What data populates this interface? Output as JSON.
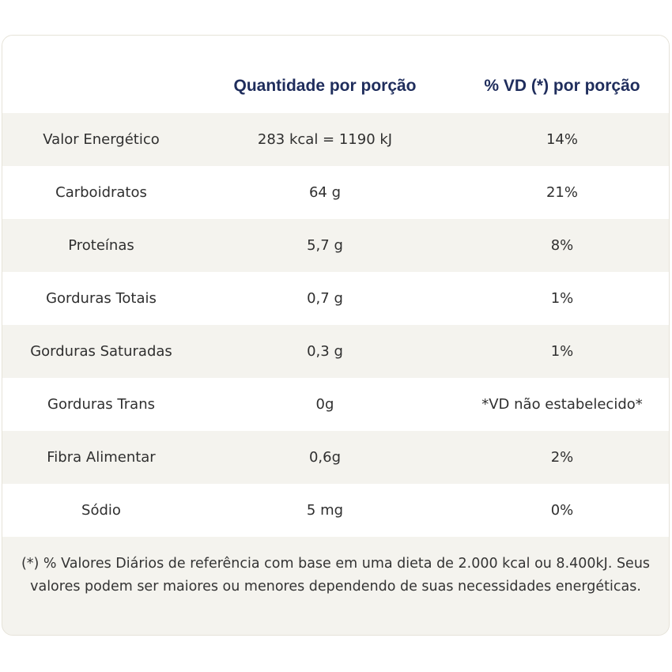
{
  "table": {
    "headers": {
      "nutrient": "",
      "quantity": "Quantidade por porção",
      "daily_value": "% VD (*) por porção"
    },
    "rows": [
      {
        "nutrient": "Valor Energético",
        "quantity": "283 kcal = 1190 kJ",
        "daily_value": "14%"
      },
      {
        "nutrient": "Carboidratos",
        "quantity": "64 g",
        "daily_value": "21%"
      },
      {
        "nutrient": "Proteínas",
        "quantity": "5,7 g",
        "daily_value": "8%"
      },
      {
        "nutrient": "Gorduras Totais",
        "quantity": "0,7 g",
        "daily_value": "1%"
      },
      {
        "nutrient": "Gorduras Saturadas",
        "quantity": "0,3 g",
        "daily_value": "1%"
      },
      {
        "nutrient": "Gorduras Trans",
        "quantity": "0g",
        "daily_value": "*VD não estabelecido*"
      },
      {
        "nutrient": "Fibra Alimentar",
        "quantity": "0,6g",
        "daily_value": "2%"
      },
      {
        "nutrient": "Sódio",
        "quantity": "5 mg",
        "daily_value": "0%"
      }
    ],
    "footnote": "(*) % Valores Diários de referência com base em uma dieta de 2.000 kcal ou 8.400kJ. Seus valores podem ser maiores ou menores dependendo de suas necessidades energéticas."
  },
  "colors": {
    "header_text": "#1f2d5c",
    "row_shade": "#f4f3ee",
    "row_plain": "#ffffff"
  }
}
